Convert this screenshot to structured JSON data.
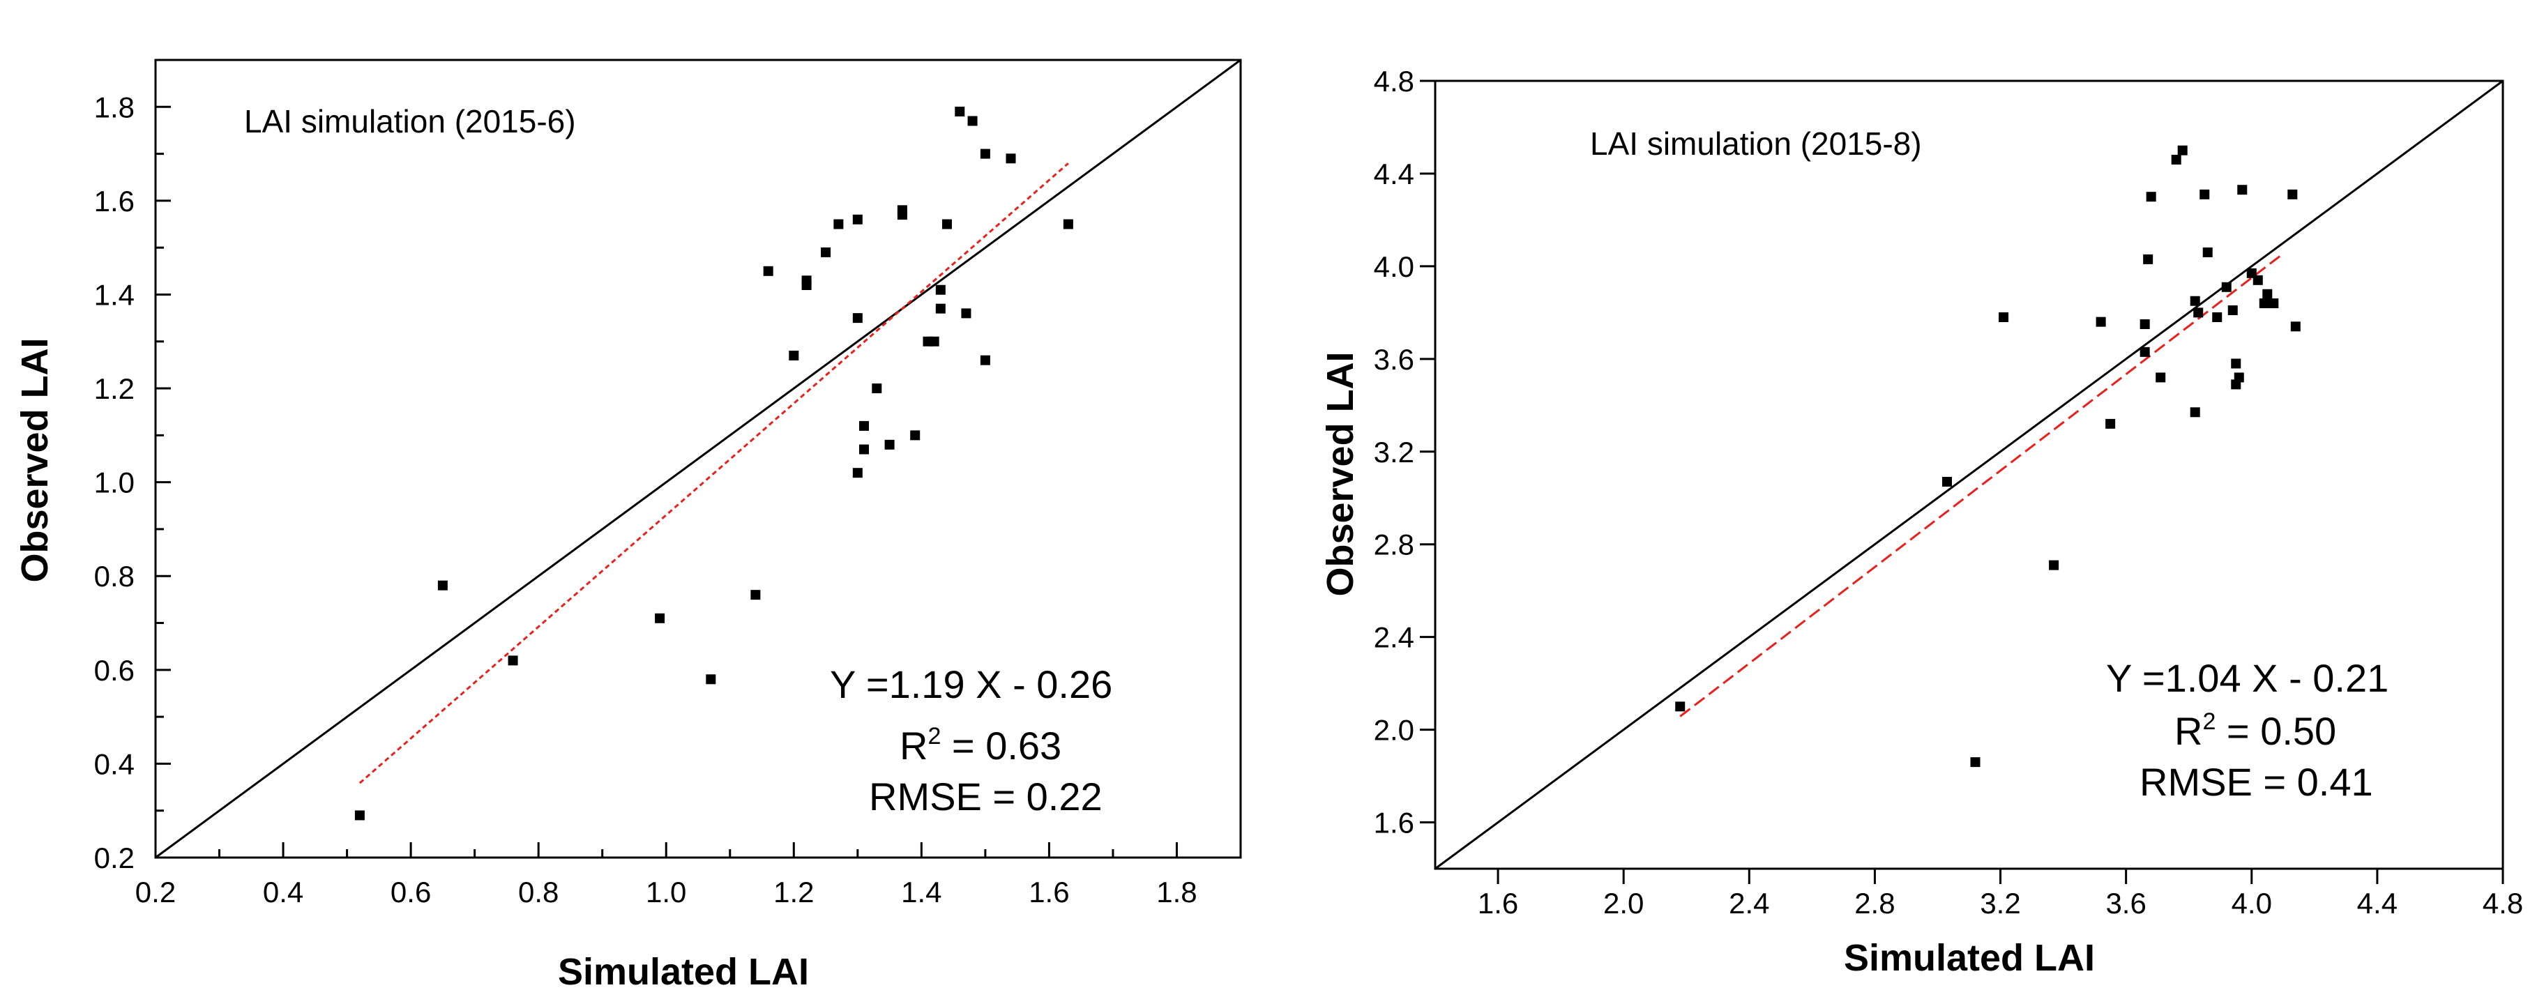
{
  "chart_data": [
    {
      "type": "scatter",
      "title": "LAI simulation (2015-6)",
      "xlabel": "Simulated LAI",
      "ylabel": "Observed LAI",
      "xlim": [
        0.2,
        1.9
      ],
      "ylim": [
        0.2,
        1.9
      ],
      "x_ticks": [
        "0.2",
        "0.4",
        "0.6",
        "0.8",
        "1.0",
        "1.2",
        "1.4",
        "1.6",
        "1.8"
      ],
      "y_ticks": [
        "0.2",
        "0.4",
        "0.6",
        "0.8",
        "1.0",
        "1.2",
        "1.4",
        "1.6",
        "1.8"
      ],
      "points": [
        {
          "x": 0.52,
          "y": 0.29
        },
        {
          "x": 0.65,
          "y": 0.78
        },
        {
          "x": 0.76,
          "y": 0.62
        },
        {
          "x": 0.99,
          "y": 0.71
        },
        {
          "x": 1.07,
          "y": 0.58
        },
        {
          "x": 1.14,
          "y": 0.76
        },
        {
          "x": 1.16,
          "y": 1.45
        },
        {
          "x": 1.2,
          "y": 1.27
        },
        {
          "x": 1.22,
          "y": 1.42
        },
        {
          "x": 1.22,
          "y": 1.43
        },
        {
          "x": 1.25,
          "y": 1.49
        },
        {
          "x": 1.27,
          "y": 1.55
        },
        {
          "x": 1.3,
          "y": 1.56
        },
        {
          "x": 1.3,
          "y": 1.35
        },
        {
          "x": 1.3,
          "y": 1.02
        },
        {
          "x": 1.31,
          "y": 1.12
        },
        {
          "x": 1.31,
          "y": 1.07
        },
        {
          "x": 1.33,
          "y": 1.2
        },
        {
          "x": 1.35,
          "y": 1.08
        },
        {
          "x": 1.37,
          "y": 1.58
        },
        {
          "x": 1.37,
          "y": 1.57
        },
        {
          "x": 1.39,
          "y": 1.1
        },
        {
          "x": 1.41,
          "y": 1.3
        },
        {
          "x": 1.42,
          "y": 1.3
        },
        {
          "x": 1.43,
          "y": 1.41
        },
        {
          "x": 1.43,
          "y": 1.37
        },
        {
          "x": 1.44,
          "y": 1.55
        },
        {
          "x": 1.46,
          "y": 1.79
        },
        {
          "x": 1.47,
          "y": 1.36
        },
        {
          "x": 1.48,
          "y": 1.77
        },
        {
          "x": 1.5,
          "y": 1.7
        },
        {
          "x": 1.5,
          "y": 1.26
        },
        {
          "x": 1.54,
          "y": 1.69
        },
        {
          "x": 1.63,
          "y": 1.55
        }
      ],
      "one_to_one_line": {
        "from": 0.2,
        "to": 1.9
      },
      "regression_line": {
        "slope": 1.19,
        "intercept": -0.26,
        "x_from": 0.52,
        "x_to": 1.63
      },
      "annotations": {
        "equation": "Y =1.19 X - 0.26",
        "r2_label": "R",
        "r2_sup": "2",
        "r2_value": " =  0.63",
        "rmse": "RMSE = 0.22"
      },
      "colors": {
        "points": "#000000",
        "one_to_one": "#000000",
        "regression": "#e8211c"
      }
    },
    {
      "type": "scatter",
      "title": "LAI simulation (2015-8)",
      "xlabel": "Simulated LAI",
      "ylabel": "Observed LAI",
      "xlim": [
        1.4,
        4.8
      ],
      "ylim": [
        1.4,
        4.8
      ],
      "x_ticks": [
        "1.6",
        "2.0",
        "2.4",
        "2.8",
        "3.2",
        "3.6",
        "4.0",
        "4.4",
        "4.8"
      ],
      "y_ticks": [
        "1.6",
        "2.0",
        "2.4",
        "2.8",
        "3.2",
        "3.6",
        "4.0",
        "4.4",
        "4.8"
      ],
      "points": [
        {
          "x": 2.18,
          "y": 2.1
        },
        {
          "x": 3.03,
          "y": 3.07
        },
        {
          "x": 3.12,
          "y": 1.86
        },
        {
          "x": 3.21,
          "y": 3.78
        },
        {
          "x": 3.37,
          "y": 2.71
        },
        {
          "x": 3.52,
          "y": 3.76
        },
        {
          "x": 3.55,
          "y": 3.32
        },
        {
          "x": 3.66,
          "y": 3.75
        },
        {
          "x": 3.66,
          "y": 3.63
        },
        {
          "x": 3.67,
          "y": 4.03
        },
        {
          "x": 3.68,
          "y": 4.3
        },
        {
          "x": 3.71,
          "y": 3.52
        },
        {
          "x": 3.76,
          "y": 4.46
        },
        {
          "x": 3.78,
          "y": 4.5
        },
        {
          "x": 3.82,
          "y": 3.85
        },
        {
          "x": 3.82,
          "y": 3.37
        },
        {
          "x": 3.83,
          "y": 3.8
        },
        {
          "x": 3.85,
          "y": 4.31
        },
        {
          "x": 3.86,
          "y": 4.06
        },
        {
          "x": 3.89,
          "y": 3.78
        },
        {
          "x": 3.92,
          "y": 3.91
        },
        {
          "x": 3.94,
          "y": 3.81
        },
        {
          "x": 3.95,
          "y": 3.58
        },
        {
          "x": 3.95,
          "y": 3.49
        },
        {
          "x": 3.96,
          "y": 3.52
        },
        {
          "x": 3.97,
          "y": 4.33
        },
        {
          "x": 4.0,
          "y": 3.97
        },
        {
          "x": 4.02,
          "y": 3.94
        },
        {
          "x": 4.04,
          "y": 3.84
        },
        {
          "x": 4.05,
          "y": 3.88
        },
        {
          "x": 4.07,
          "y": 3.84
        },
        {
          "x": 4.13,
          "y": 4.31
        },
        {
          "x": 4.14,
          "y": 3.74
        }
      ],
      "one_to_one_line": {
        "from": 1.4,
        "to": 4.8
      },
      "regression_line": {
        "slope": 1.04,
        "intercept": -0.21,
        "x_from": 2.18,
        "x_to": 4.1
      },
      "annotations": {
        "equation": "Y =1.04 X - 0.21",
        "r2_label": "R",
        "r2_sup": "2",
        "r2_value": " =  0.50",
        "rmse": "RMSE = 0.41"
      },
      "colors": {
        "points": "#000000",
        "one_to_one": "#000000",
        "regression": "#e8211c"
      }
    }
  ]
}
